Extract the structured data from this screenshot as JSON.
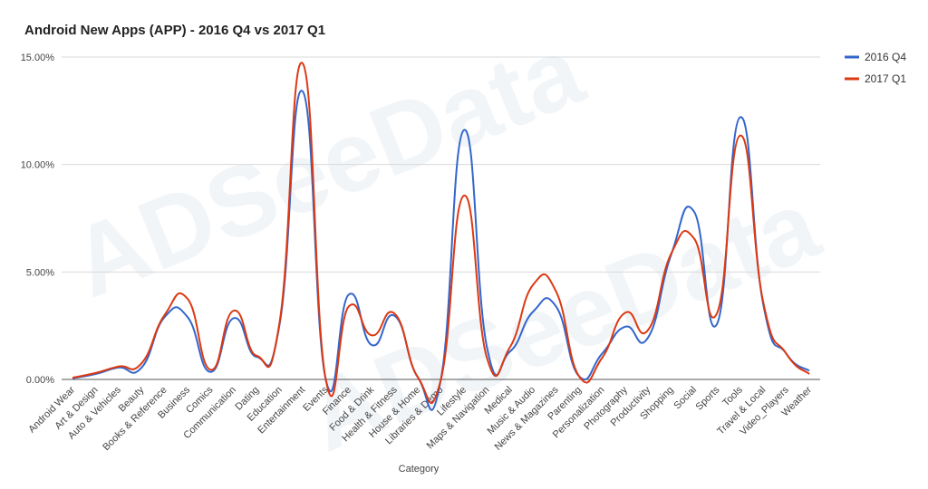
{
  "chart_data": {
    "type": "line",
    "title": "Android New Apps (APP) - 2016 Q4 vs 2017 Q1",
    "xlabel": "Category",
    "ylabel": "",
    "ylim": [
      0,
      15
    ],
    "yticks": [
      "0.00%",
      "5.00%",
      "10.00%",
      "15.00%"
    ],
    "ytick_values": [
      0,
      5,
      10,
      15
    ],
    "grid": true,
    "legend_position": "top-right",
    "watermark": "ADSeeData",
    "categories": [
      "Android Wear",
      "Art & Design",
      "Auto & Vehicles",
      "Beauty",
      "Books & Reference",
      "Business",
      "Comics",
      "Communication",
      "Dating",
      "Education",
      "Entertainment",
      "Events",
      "Finance",
      "Food & Drink",
      "Health & Fitness",
      "House & Home",
      "Libraries & Demo",
      "Lifestyle",
      "Maps & Navigation",
      "Medical",
      "Music & Audio",
      "News & Magazines",
      "Parenting",
      "Personalization",
      "Photography",
      "Productivity",
      "Shopping",
      "Social",
      "Sports",
      "Tools",
      "Travel & Local",
      "Video_Players",
      "Weather"
    ],
    "series": [
      {
        "name": "2016 Q4",
        "color": "#3366cc",
        "values": [
          0.05,
          0.25,
          0.55,
          0.55,
          2.9,
          2.9,
          0.35,
          2.85,
          1.05,
          2.6,
          13.4,
          0.0,
          3.95,
          1.6,
          2.95,
          0.1,
          0.0,
          11.6,
          1.5,
          1.3,
          3.15,
          3.4,
          0.15,
          1.2,
          2.45,
          1.95,
          5.8,
          7.8,
          2.6,
          12.2,
          3.5,
          1.2,
          0.4
        ]
      },
      {
        "name": "2017 Q1",
        "color": "#dc3912",
        "values": [
          0.08,
          0.3,
          0.6,
          0.75,
          3.0,
          3.75,
          0.45,
          3.2,
          1.1,
          2.7,
          14.7,
          0.0,
          3.4,
          2.05,
          3.05,
          0.1,
          0.0,
          8.55,
          1.0,
          1.5,
          4.4,
          4.1,
          0.15,
          1.0,
          3.1,
          2.3,
          5.85,
          6.55,
          3.1,
          11.35,
          3.6,
          1.2,
          0.25
        ]
      }
    ]
  }
}
